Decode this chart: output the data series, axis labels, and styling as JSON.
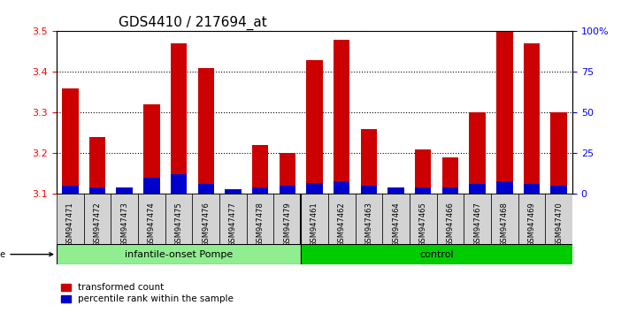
{
  "title": "GDS4410 / 217694_at",
  "samples": [
    "GSM947471",
    "GSM947472",
    "GSM947473",
    "GSM947474",
    "GSM947475",
    "GSM947476",
    "GSM947477",
    "GSM947478",
    "GSM947479",
    "GSM947461",
    "GSM947462",
    "GSM947463",
    "GSM947464",
    "GSM947465",
    "GSM947466",
    "GSM947467",
    "GSM947468",
    "GSM947469",
    "GSM947470"
  ],
  "transformed_count": [
    3.36,
    3.24,
    3.11,
    3.32,
    3.47,
    3.41,
    3.11,
    3.22,
    3.2,
    3.43,
    3.48,
    3.26,
    3.11,
    3.21,
    3.19,
    3.3,
    3.5,
    3.47,
    3.3
  ],
  "percentile_rank": [
    0.05,
    0.04,
    0.04,
    0.1,
    0.12,
    0.06,
    0.03,
    0.04,
    0.05,
    0.07,
    0.08,
    0.05,
    0.04,
    0.04,
    0.04,
    0.06,
    0.08,
    0.06,
    0.05
  ],
  "groups": [
    "infantile-onset Pompe",
    "infantile-onset Pompe",
    "infantile-onset Pompe",
    "infantile-onset Pompe",
    "infantile-onset Pompe",
    "infantile-onset Pompe",
    "infantile-onset Pompe",
    "infantile-onset Pompe",
    "infantile-onset Pompe",
    "control",
    "control",
    "control",
    "control",
    "control",
    "control",
    "control",
    "control",
    "control",
    "control"
  ],
  "group_labels": [
    "infantile-onset Pompe",
    "control"
  ],
  "group_colors": [
    "#90EE90",
    "#00CC00"
  ],
  "y_min": 3.1,
  "y_max": 3.5,
  "y_ticks": [
    3.1,
    3.2,
    3.3,
    3.4,
    3.5
  ],
  "right_y_ticks": [
    0,
    25,
    50,
    75,
    100
  ],
  "right_y_labels": [
    "0",
    "25",
    "50",
    "75",
    "100%"
  ],
  "bar_color_red": "#CC0000",
  "bar_color_blue": "#0000CC",
  "bg_color": "#FFFFFF",
  "grid_color": "#000000",
  "bar_width": 0.6,
  "tick_label_fontsize": 7,
  "title_fontsize": 11
}
